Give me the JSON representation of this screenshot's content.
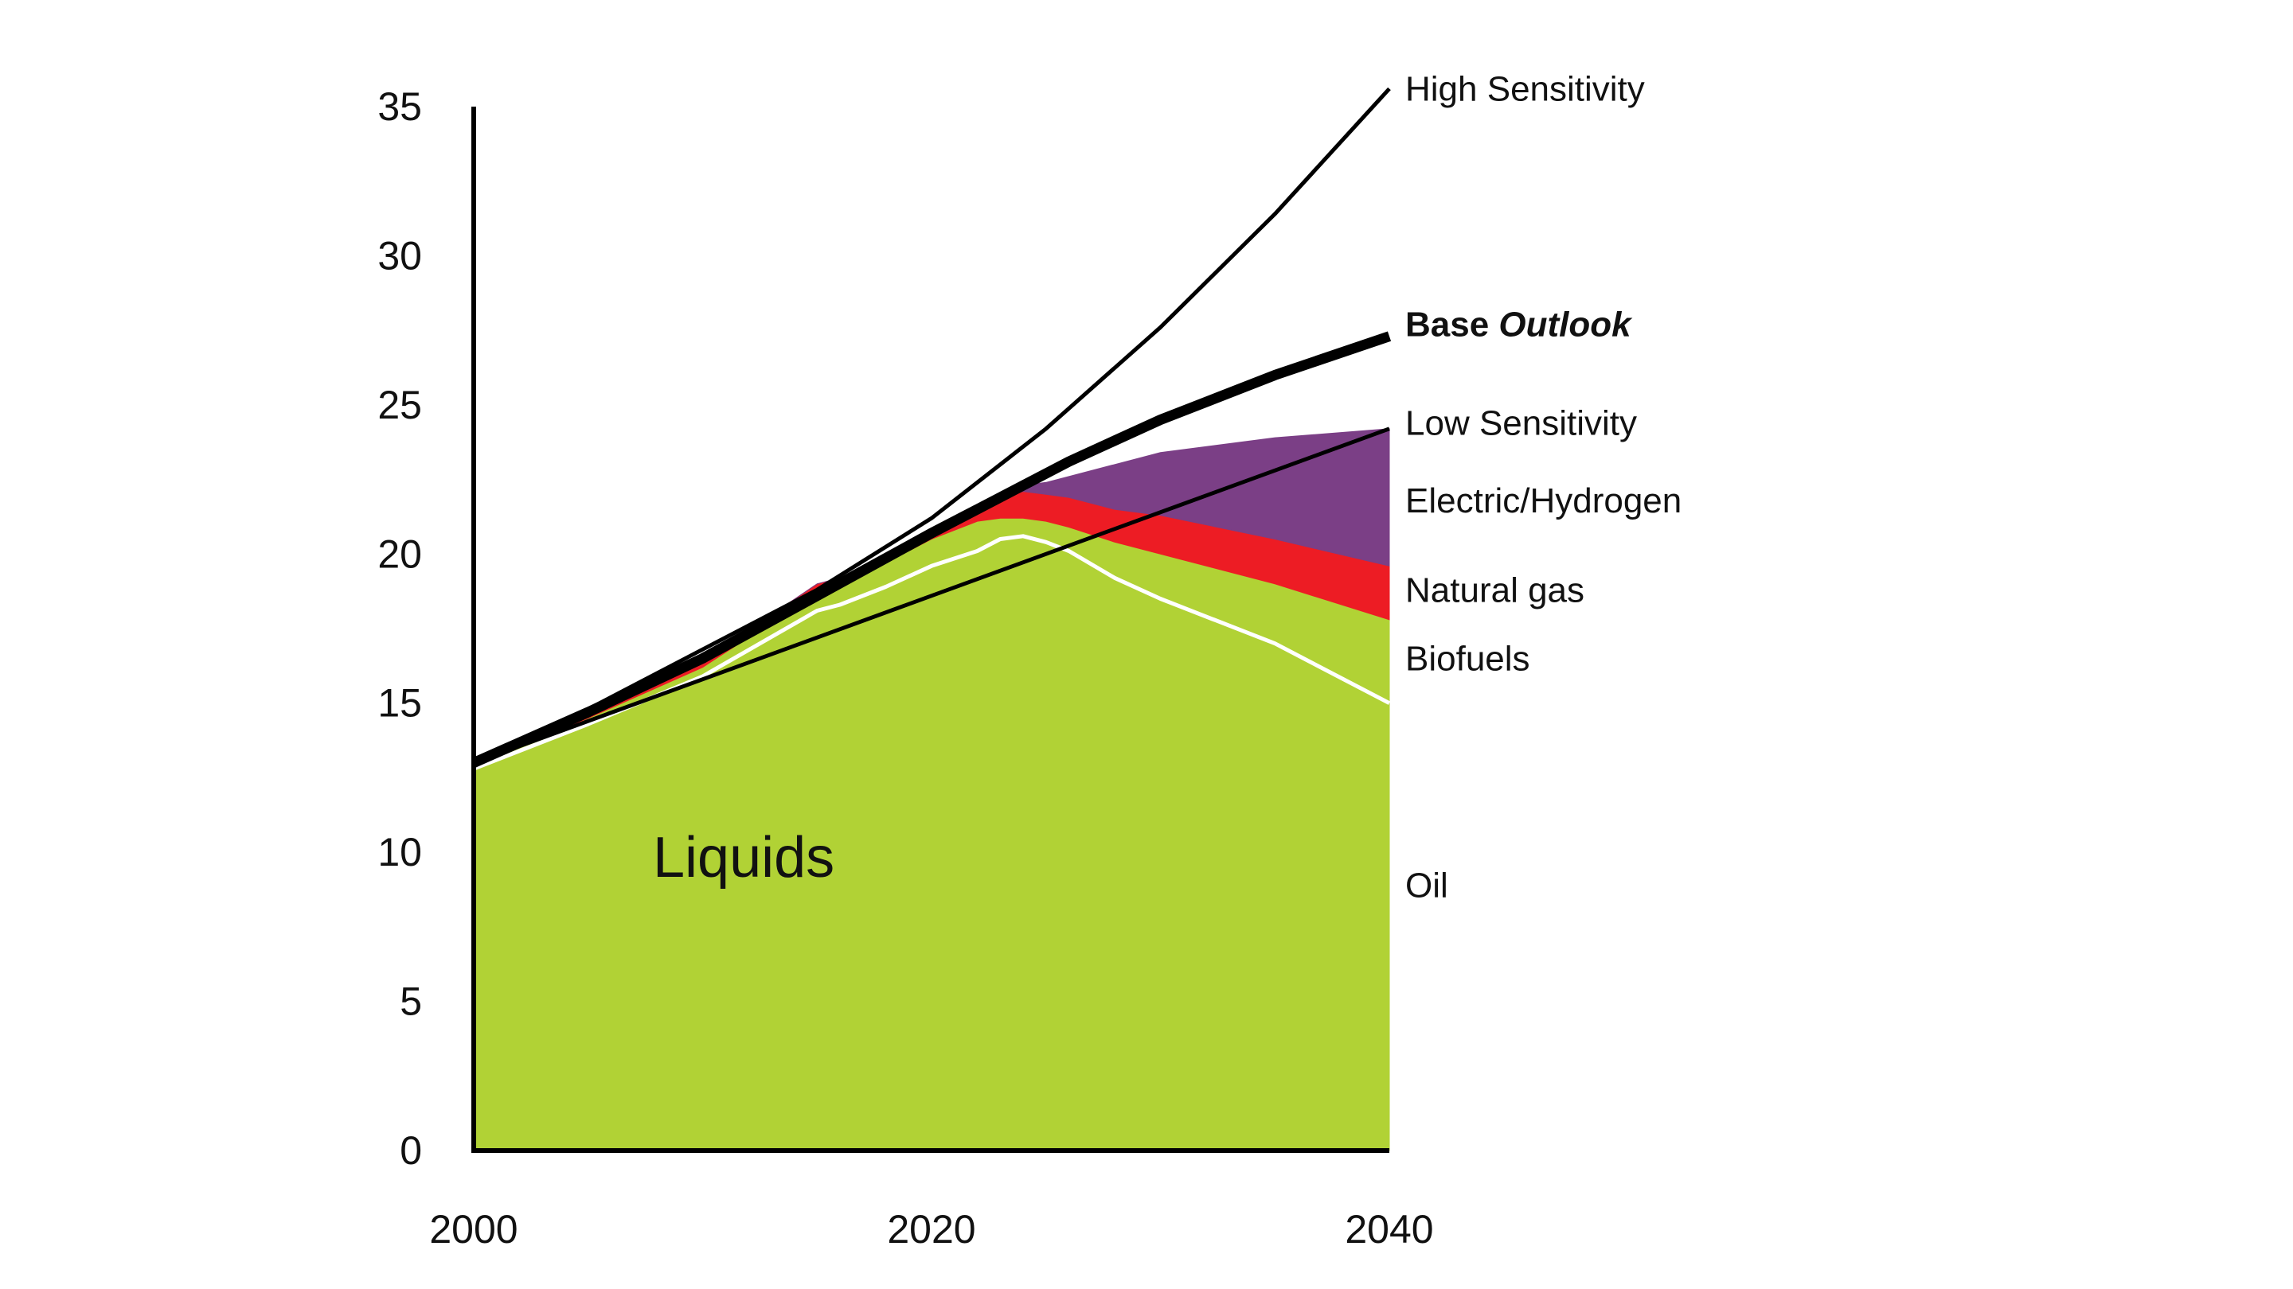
{
  "chart_data": {
    "type": "area",
    "xlim": [
      2000,
      2040
    ],
    "ylim": [
      0,
      35
    ],
    "x_ticks": [
      "2000",
      "2020",
      "2040"
    ],
    "x_tick_values": [
      2000,
      2020,
      2040
    ],
    "y_ticks": [
      "0",
      "5",
      "10",
      "15",
      "20",
      "25",
      "30",
      "35"
    ],
    "y_tick_values": [
      0,
      5,
      10,
      15,
      20,
      25,
      30,
      35
    ],
    "grid": false,
    "legend": "right-side labels",
    "area_label": "Liquids",
    "x": [
      2000,
      2005,
      2010,
      2015,
      2016,
      2018,
      2020,
      2022,
      2023,
      2024,
      2025,
      2026,
      2028,
      2030,
      2035,
      2040
    ],
    "stack": [
      {
        "name": "Oil",
        "color": "#b1d235",
        "values": [
          12.8,
          14.3,
          15.9,
          18.1,
          18.3,
          18.9,
          19.6,
          20.1,
          20.5,
          20.6,
          20.4,
          20.1,
          19.2,
          18.5,
          17.0,
          15.0
        ]
      },
      {
        "name": "Biofuels",
        "color": "#b1d235",
        "values": [
          0.1,
          0.2,
          0.3,
          0.6,
          0.6,
          0.8,
          0.9,
          1.0,
          0.7,
          0.6,
          0.7,
          0.8,
          1.2,
          1.5,
          2.0,
          2.8
        ]
      },
      {
        "name": "Natural gas",
        "color": "#ed1c24",
        "values": [
          0.0,
          0.1,
          0.2,
          0.3,
          0.3,
          0.2,
          0.3,
          0.5,
          0.7,
          0.9,
          0.9,
          1.0,
          1.1,
          1.3,
          1.5,
          1.8
        ]
      },
      {
        "name": "Electric/Hydrogen",
        "color": "#7b3f86",
        "values": [
          0.0,
          0.0,
          0.0,
          0.0,
          0.0,
          0.0,
          0.0,
          0.0,
          0.1,
          0.2,
          0.4,
          0.7,
          1.5,
          2.1,
          3.4,
          4.6
        ]
      }
    ],
    "lines": [
      {
        "name": "High Sensitivity",
        "color": "#000000",
        "weight": "thin",
        "x": [
          2000,
          2005,
          2010,
          2015,
          2020,
          2025,
          2030,
          2035,
          2040
        ],
        "values": [
          13.0,
          14.8,
          16.8,
          18.8,
          21.2,
          24.2,
          27.6,
          31.4,
          35.6
        ]
      },
      {
        "name": "Base Outlook",
        "color": "#000000",
        "weight": "thick",
        "x": [
          2000,
          2005,
          2010,
          2015,
          2020,
          2022,
          2024,
          2026,
          2028,
          2030,
          2035,
          2040
        ],
        "values": [
          13.0,
          14.7,
          16.5,
          18.6,
          20.7,
          21.5,
          22.3,
          23.1,
          23.8,
          24.5,
          26.0,
          27.3
        ]
      },
      {
        "name": "Low Sensitivity",
        "color": "#000000",
        "weight": "thin",
        "x": [
          2000,
          2040
        ],
        "values": [
          13.0,
          24.2
        ]
      }
    ],
    "right_labels": [
      {
        "text": "High Sensitivity",
        "y": 35.6,
        "style": "normal"
      },
      {
        "text": "Low Sensitivity",
        "y": 24.4,
        "style": "normal"
      },
      {
        "text": "Electric/Hydrogen",
        "y": 21.8,
        "style": "normal"
      },
      {
        "text": "Natural gas",
        "y": 18.8,
        "style": "normal"
      },
      {
        "text": "Biofuels",
        "y": 16.5,
        "style": "normal"
      },
      {
        "text": "Oil",
        "y": 8.9,
        "style": "normal"
      }
    ],
    "base_label": {
      "bold": "Base",
      "italic": "Outlook",
      "y": 27.7
    }
  }
}
